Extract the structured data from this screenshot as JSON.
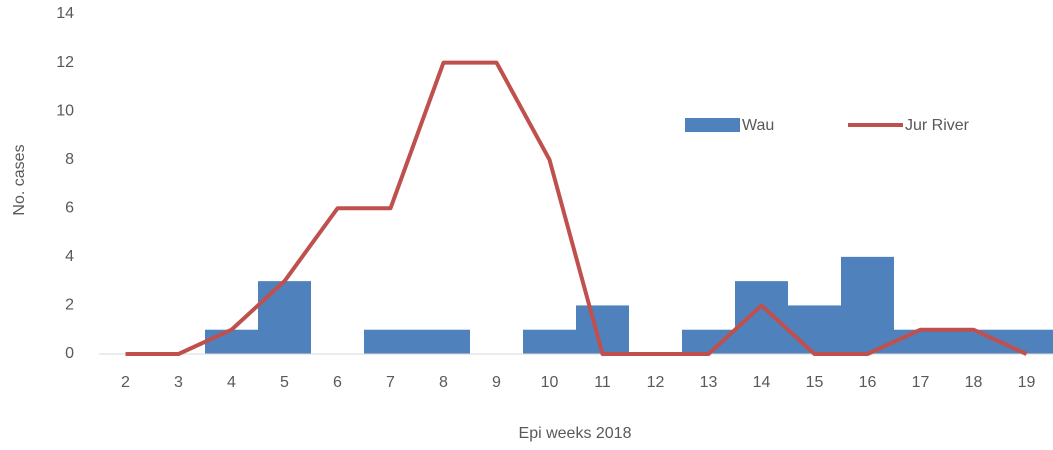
{
  "chart_data": {
    "type": "bar",
    "x_label": "Epi weeks 2018",
    "y_label": "No. cases",
    "categories": [
      "2",
      "3",
      "4",
      "5",
      "6",
      "7",
      "8",
      "9",
      "10",
      "11",
      "12",
      "13",
      "14",
      "15",
      "16",
      "17",
      "18",
      "19"
    ],
    "series": [
      {
        "name": "Wau",
        "type": "bar",
        "color": "#4f81bd",
        "values": [
          0,
          0,
          1,
          3,
          0,
          1,
          1,
          0,
          1,
          2,
          0,
          1,
          3,
          2,
          4,
          1,
          1,
          1
        ]
      },
      {
        "name": "Jur River",
        "type": "line",
        "color": "#c0504d",
        "values": [
          0,
          0,
          1,
          3,
          6,
          6,
          12,
          12,
          8,
          0,
          0,
          0,
          2,
          0,
          0,
          1,
          1,
          0
        ]
      }
    ],
    "ylim": [
      0,
      14
    ],
    "yticks": [
      0,
      2,
      4,
      6,
      8,
      10,
      12,
      14
    ],
    "grid": false
  }
}
